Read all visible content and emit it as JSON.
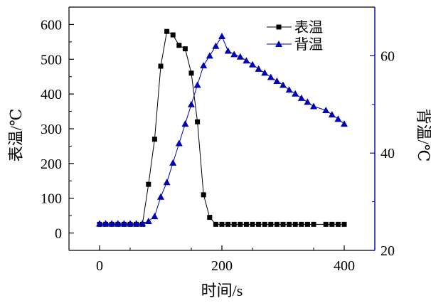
{
  "chart_data": {
    "type": "line",
    "title": "",
    "xlabel": "时间/s",
    "ylabel_left": "表温/℃",
    "ylabel_right": "背温/℃",
    "xlim": [
      -50,
      450
    ],
    "ylim_left": [
      -50,
      650
    ],
    "ylim_right": [
      20,
      70
    ],
    "x_ticks": [
      0,
      200,
      400
    ],
    "y_left_ticks": [
      0,
      100,
      200,
      300,
      400,
      500,
      600
    ],
    "y_right_ticks": [
      20,
      40,
      60
    ],
    "grid": false,
    "legend_position": "top-right",
    "series": [
      {
        "name": "表温",
        "axis": "left",
        "marker": "square",
        "color": "#000000",
        "x": [
          0,
          10,
          20,
          30,
          40,
          50,
          60,
          70,
          80,
          90,
          100,
          110,
          120,
          130,
          140,
          150,
          160,
          170,
          180,
          190,
          200,
          210,
          220,
          230,
          240,
          250,
          260,
          270,
          280,
          290,
          300,
          310,
          320,
          330,
          340,
          350,
          370,
          380,
          390,
          400
        ],
        "values": [
          25,
          25,
          25,
          25,
          25,
          25,
          25,
          25,
          140,
          270,
          480,
          580,
          570,
          540,
          530,
          460,
          320,
          110,
          45,
          25,
          25,
          25,
          25,
          25,
          25,
          25,
          25,
          25,
          25,
          25,
          25,
          25,
          25,
          25,
          25,
          25,
          25,
          25,
          25,
          25
        ]
      },
      {
        "name": "背温",
        "axis": "right",
        "marker": "triangle",
        "color": "#0000b4",
        "x": [
          0,
          10,
          20,
          30,
          40,
          50,
          60,
          70,
          80,
          90,
          100,
          110,
          120,
          130,
          140,
          150,
          160,
          170,
          180,
          190,
          200,
          210,
          220,
          230,
          240,
          250,
          260,
          270,
          280,
          290,
          300,
          310,
          320,
          330,
          340,
          350,
          370,
          380,
          390,
          400
        ],
        "values": [
          25.5,
          25.5,
          25.5,
          25.5,
          25.5,
          25.5,
          25.5,
          25.5,
          26,
          27,
          31,
          34,
          38,
          42,
          46,
          50,
          54,
          58,
          60,
          62,
          64,
          61,
          60.3,
          59.8,
          59,
          58.2,
          57.3,
          56.5,
          55.6,
          54.8,
          54,
          53,
          52.2,
          51.3,
          50.5,
          49.6,
          48.8,
          47.9,
          47,
          46
        ]
      }
    ]
  }
}
